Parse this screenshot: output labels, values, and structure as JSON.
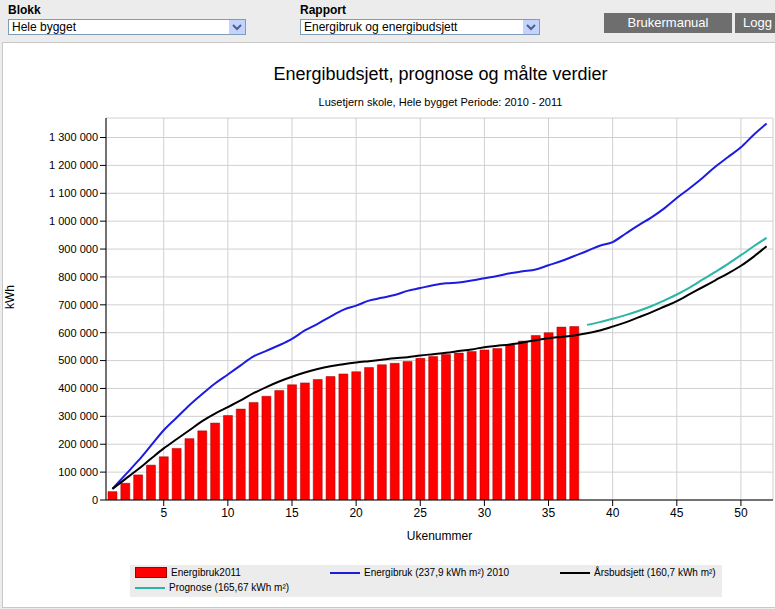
{
  "header": {
    "blokk_label": "Blokk",
    "blokk_value": "Hele bygget",
    "rapport_label": "Rapport",
    "rapport_value": "Energibruk og energibudsjett",
    "buttons": [
      "Brukermanual",
      "Logg"
    ]
  },
  "chart_data": {
    "type": "bar",
    "title": "Energibudsjett, prognose og målte verdier",
    "subtitle": "Lusetjern skole, Hele bygget Periode: 2010 - 2011",
    "x_label": "Ukenummer",
    "y_label": "kWh",
    "x": [
      1,
      2,
      3,
      4,
      5,
      6,
      7,
      8,
      9,
      10,
      11,
      12,
      13,
      14,
      15,
      16,
      17,
      18,
      19,
      20,
      21,
      22,
      23,
      24,
      25,
      26,
      27,
      28,
      29,
      30,
      31,
      32,
      33,
      34,
      35,
      36,
      37,
      38,
      39,
      40,
      41,
      42,
      43,
      44,
      45,
      46,
      47,
      48,
      49,
      50,
      51,
      52
    ],
    "xlim": [
      0.5,
      52.5
    ],
    "xticks": [
      5,
      10,
      15,
      20,
      25,
      30,
      35,
      40,
      45,
      50
    ],
    "ylim": [
      0,
      1370000
    ],
    "yticks": [
      0,
      {
        "value": 100000,
        "label": "100 000"
      },
      {
        "value": 200000,
        "label": "200 000"
      },
      {
        "value": 300000,
        "label": "300 000"
      },
      {
        "value": 400000,
        "label": "400 000"
      },
      {
        "value": 500000,
        "label": "500 000"
      },
      {
        "value": 600000,
        "label": "600 000"
      },
      {
        "value": 700000,
        "label": "700 000"
      },
      {
        "value": 800000,
        "label": "800 000"
      },
      {
        "value": 900000,
        "label": "900 000"
      },
      {
        "value": 1000000,
        "label": "1 000 000"
      },
      {
        "value": 1100000,
        "label": "1 100 000"
      },
      {
        "value": 1200000,
        "label": "1 200 000"
      },
      {
        "value": 1300000,
        "label": "1 300 000"
      }
    ],
    "grid": true,
    "legend": "bottom",
    "series": [
      {
        "name": "Energibruk2011",
        "type": "bar",
        "color": "#ff0000",
        "values": [
          30000,
          60000,
          90000,
          125000,
          155000,
          185000,
          220000,
          248000,
          276000,
          303000,
          326000,
          350000,
          372000,
          393000,
          413000,
          420000,
          432000,
          443000,
          452000,
          460000,
          475000,
          485000,
          490000,
          497000,
          508000,
          515000,
          522000,
          527000,
          533000,
          538000,
          543000,
          556000,
          570000,
          590000,
          600000,
          620000,
          622000,
          null,
          null,
          null,
          null,
          null,
          null,
          null,
          null,
          null,
          null,
          null,
          null,
          null,
          null,
          null
        ]
      },
      {
        "name": "Energibruk (237,9 kWh m²) 2010",
        "type": "line",
        "color": "#1c1ce0",
        "values": [
          40000,
          90000,
          140000,
          195000,
          250000,
          295000,
          340000,
          380000,
          418000,
          450000,
          483000,
          515000,
          535000,
          555000,
          578000,
          608000,
          632000,
          658000,
          682000,
          697000,
          715000,
          725000,
          735000,
          750000,
          760000,
          770000,
          777000,
          780000,
          787000,
          795000,
          803000,
          813000,
          820000,
          827000,
          842000,
          857000,
          875000,
          893000,
          912000,
          925000,
          955000,
          985000,
          1013000,
          1045000,
          1083000,
          1118000,
          1155000,
          1195000,
          1230000,
          1265000,
          1310000,
          1350000
        ]
      },
      {
        "name": "Årsbudsjett (160,7 kWh m²)",
        "type": "line",
        "color": "#000000",
        "values": [
          40000,
          75000,
          110000,
          148000,
          185000,
          218000,
          250000,
          283000,
          310000,
          333000,
          357000,
          383000,
          405000,
          425000,
          442000,
          457000,
          470000,
          480000,
          487000,
          493000,
          498000,
          503000,
          508000,
          512000,
          518000,
          523000,
          528000,
          534000,
          540000,
          548000,
          553000,
          558000,
          565000,
          573000,
          580000,
          585000,
          590000,
          598000,
          608000,
          622000,
          637000,
          655000,
          673000,
          693000,
          713000,
          738000,
          763000,
          788000,
          813000,
          840000,
          873000,
          910000
        ]
      },
      {
        "name": "Prognose (165,67 kWh m²)",
        "type": "line",
        "color": "#2ab5a5",
        "values": [
          null,
          null,
          null,
          null,
          null,
          null,
          null,
          null,
          null,
          null,
          null,
          null,
          null,
          null,
          null,
          null,
          null,
          null,
          null,
          null,
          null,
          null,
          null,
          null,
          null,
          null,
          null,
          null,
          null,
          null,
          null,
          null,
          null,
          null,
          null,
          null,
          null,
          628000,
          638000,
          650000,
          663000,
          678000,
          695000,
          715000,
          737000,
          762000,
          790000,
          818000,
          847000,
          878000,
          910000,
          940000
        ]
      }
    ]
  }
}
